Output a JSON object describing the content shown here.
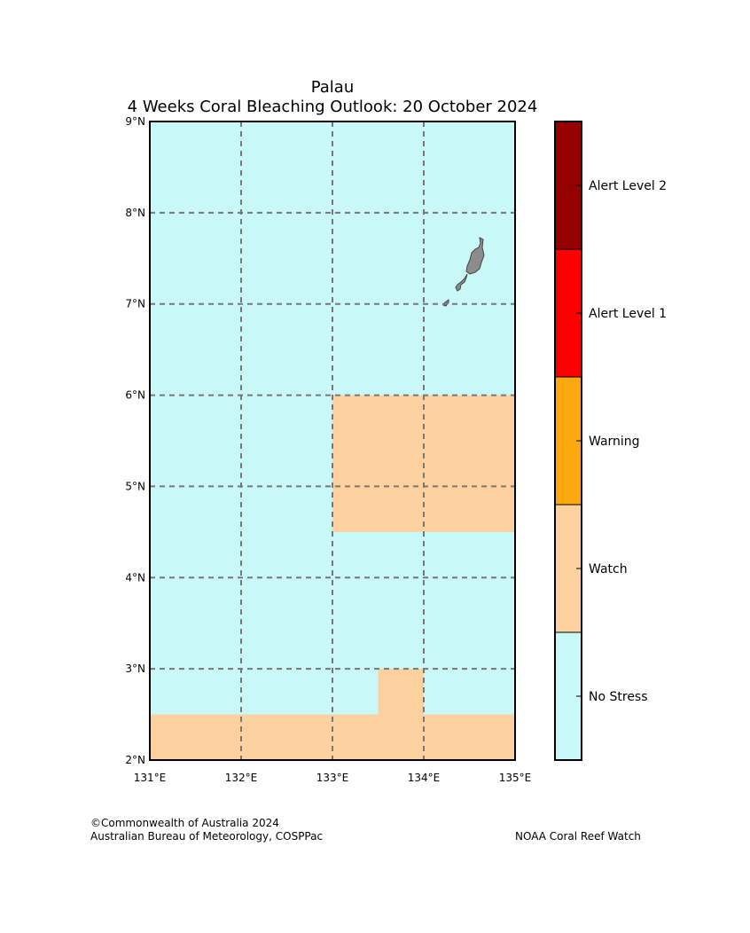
{
  "title": {
    "line1": "Palau",
    "line2": "4 Weeks Coral Bleaching Outlook: 20 October 2024"
  },
  "map": {
    "lon_range": [
      131,
      135
    ],
    "lat_range": [
      2,
      9
    ],
    "lon_ticks": [
      "131°E",
      "132°E",
      "133°E",
      "134°E",
      "135°E"
    ],
    "lat_ticks": [
      "2°N",
      "3°N",
      "4°N",
      "5°N",
      "6°N",
      "7°N",
      "8°N",
      "9°N"
    ],
    "background_category": "No Stress",
    "regions": [
      {
        "name": "watch-region-north",
        "category": "Watch",
        "lon": [
          133,
          135
        ],
        "lat": [
          4.5,
          6
        ]
      },
      {
        "name": "watch-region-south-strip",
        "category": "Watch",
        "lon": [
          131,
          135
        ],
        "lat": [
          2,
          2.5
        ]
      },
      {
        "name": "watch-region-south-notch",
        "category": "Watch",
        "lon": [
          133.5,
          134
        ],
        "lat": [
          2.5,
          3
        ]
      }
    ],
    "land": "Palau islands",
    "land_color": "#8c8c8c"
  },
  "legend": {
    "categories": [
      {
        "label": "No Stress",
        "color": "#c8f9f8"
      },
      {
        "label": "Watch",
        "color": "#fdd19e"
      },
      {
        "label": "Warning",
        "color": "#fba90e"
      },
      {
        "label": "Alert Level 1",
        "color": "#fc0000"
      },
      {
        "label": "Alert Level 2",
        "color": "#940000"
      }
    ]
  },
  "footer": {
    "left_line1": "©Commonwealth of Australia 2024",
    "left_line2": "Australian Bureau of Meteorology, COSPPac",
    "right": "NOAA Coral Reef Watch"
  }
}
